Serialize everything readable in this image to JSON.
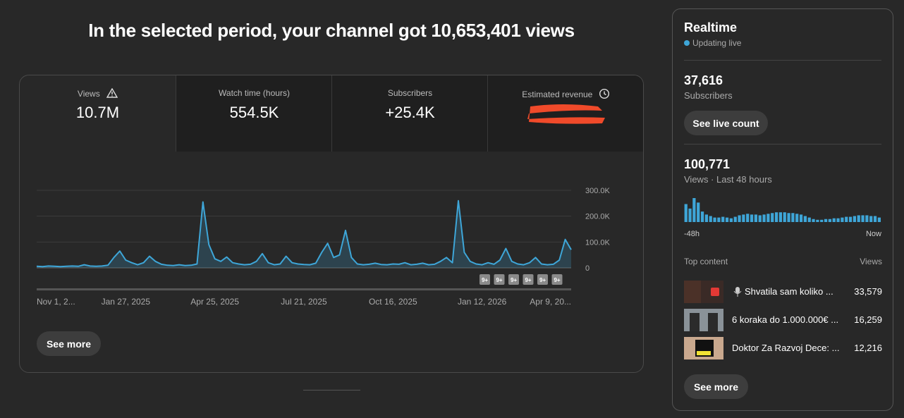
{
  "header": {
    "title": "In the selected period, your channel got 10,653,401 views"
  },
  "metrics": [
    {
      "label": "Views",
      "value": "10.7M"
    },
    {
      "label": "Watch time (hours)",
      "value": "554.5K"
    },
    {
      "label": "Subscribers",
      "value": "+25.4K"
    },
    {
      "label": "Estimated revenue"
    }
  ],
  "chart_data": [
    {
      "type": "line",
      "color": "#3ea6d8",
      "categories": [
        "Nov 1, 2...",
        null,
        null,
        null,
        null,
        null,
        null,
        null,
        null,
        null,
        null,
        null,
        null,
        null,
        null,
        "Jan 27, 2025",
        null,
        null,
        null,
        null,
        null,
        null,
        null,
        null,
        null,
        null,
        null,
        null,
        null,
        null,
        "Apr 25, 2025",
        null,
        null,
        null,
        null,
        null,
        null,
        null,
        null,
        null,
        null,
        null,
        null,
        null,
        null,
        "Jul 21, 2025",
        null,
        null,
        null,
        null,
        null,
        null,
        null,
        null,
        null,
        null,
        null,
        null,
        null,
        null,
        "Oct 16, 2025",
        null,
        null,
        null,
        null,
        null,
        null,
        null,
        null,
        null,
        null,
        null,
        null,
        null,
        null,
        "Jan 12, 2026",
        null,
        null,
        null,
        null,
        null,
        null,
        null,
        null,
        null,
        null,
        null,
        null,
        null,
        null,
        "Apr 9, 20..."
      ],
      "values": [
        6000,
        5000,
        7000,
        6000,
        5000,
        6000,
        7000,
        6000,
        12000,
        7000,
        6000,
        7000,
        10000,
        40000,
        65000,
        30000,
        20000,
        12000,
        20000,
        45000,
        25000,
        14000,
        10000,
        9000,
        12000,
        9000,
        10000,
        15000,
        255000,
        90000,
        35000,
        25000,
        42000,
        20000,
        15000,
        12000,
        14000,
        25000,
        55000,
        20000,
        12000,
        15000,
        45000,
        20000,
        15000,
        13000,
        12000,
        18000,
        60000,
        95000,
        40000,
        50000,
        145000,
        40000,
        15000,
        12000,
        14000,
        18000,
        13000,
        12000,
        15000,
        14000,
        20000,
        12000,
        14000,
        18000,
        12000,
        14000,
        25000,
        40000,
        20000,
        260000,
        60000,
        25000,
        15000,
        12000,
        20000,
        14000,
        30000,
        75000,
        25000,
        15000,
        12000,
        20000,
        40000,
        15000,
        12000,
        14000,
        30000,
        110000,
        70000
      ],
      "ylim": [
        0,
        300000
      ],
      "yticks": [
        0,
        {
          "value": 100000,
          "label": "100.0K"
        },
        {
          "value": 200000,
          "label": "200.0K"
        },
        {
          "value": 300000,
          "label": "300.0K"
        }
      ],
      "grid": true,
      "annotations": [
        "9+",
        "9+",
        "9+",
        "9+",
        "9+",
        "9+"
      ]
    },
    {
      "type": "bar",
      "color": "#3ea6d8",
      "categories": [
        "-48h",
        null,
        null,
        null,
        null,
        null,
        null,
        null,
        null,
        null,
        null,
        null,
        null,
        null,
        null,
        null,
        null,
        null,
        null,
        null,
        null,
        null,
        null,
        null,
        null,
        null,
        null,
        null,
        null,
        null,
        null,
        null,
        null,
        null,
        null,
        null,
        null,
        null,
        null,
        null,
        null,
        null,
        null,
        null,
        null,
        null,
        null,
        "Now"
      ],
      "values": [
        5160,
        3870,
        6880,
        5590,
        3010,
        2150,
        1720,
        1290,
        1290,
        1505,
        1290,
        1075,
        1505,
        1935,
        2150,
        2365,
        2150,
        2150,
        1935,
        2150,
        2365,
        2580,
        2795,
        2795,
        2795,
        2580,
        2580,
        2365,
        2150,
        1720,
        1290,
        860,
        645,
        645,
        860,
        860,
        1075,
        1075,
        1290,
        1505,
        1505,
        1720,
        1935,
        1935,
        1935,
        1720,
        1720,
        1290
      ]
    }
  ],
  "see_more": "See more",
  "realtime": {
    "title": "Realtime",
    "status": "Updating live",
    "subscribers": {
      "count": "37,616",
      "label": "Subscribers"
    },
    "button": "See live count",
    "views": {
      "count": "100,771",
      "label": "Views · Last 48 hours"
    }
  },
  "top_content": {
    "title": "Top content",
    "views_label": "Views",
    "items": [
      {
        "title": "Shvatila sam koliko ...",
        "views": "33,579"
      },
      {
        "title": "6 koraka do 1.000.000€ ...",
        "views": "16,259"
      },
      {
        "title": "Doktor Za Razvoj Dece: ...",
        "views": "12,216"
      }
    ],
    "button": "See more"
  }
}
